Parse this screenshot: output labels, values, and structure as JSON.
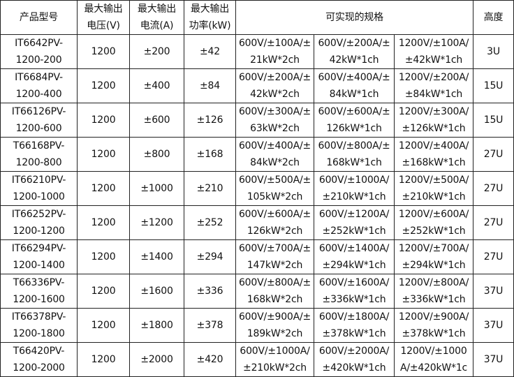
{
  "table": {
    "headers": [
      "产品型号",
      "最大输出\n电压(V)",
      "最大输出\n电流(A)",
      "最大输出\n功率(kW)",
      "可实现的规格",
      "高度"
    ],
    "rows": [
      [
        "IT6642PV-\n1200-200",
        "1200",
        "±200",
        "±42",
        "600V/±100A/±\n21kW*2ch",
        "600V/±200A/±\n42kW*1ch",
        "1200V/±100A/\n±42kW*1ch",
        "3U"
      ],
      [
        "IT6684PV-\n1200-400",
        "1200",
        "±400",
        "±84",
        "600V/±200A/±\n42kW*2ch",
        "600V/±400A/±\n84kW*1ch",
        "1200V/±200A/\n±84kW*1ch",
        "15U"
      ],
      [
        "IT66126PV-\n1200-600",
        "1200",
        "±600",
        "±126",
        "600V/±300A/±\n63kW*2ch",
        "600V/±600A/±\n126kW*1ch",
        "1200V/±300A/\n±126kW*1ch",
        "15U"
      ],
      [
        "T66168PV-\n1200-800",
        "1200",
        "±800",
        "±168",
        "600V/±400A/±\n84kW*2ch",
        "600V/±800A/±\n168kW*1ch",
        "1200V/±400A/\n±168kW*1ch",
        "27U"
      ],
      [
        "IT66210PV-\n1200-1000",
        "1200",
        "±1000",
        "±210",
        "600V/±500A/±\n105kW*2ch",
        "600V/±1000A/\n±210kW*1ch",
        "1200V/±500A/\n±210kW*1ch",
        "27U"
      ],
      [
        "IT66252PV-\n1200-1200",
        "1200",
        "±1200",
        "±252",
        "600V/±600A/±\n126kW*2ch",
        "600V/±1200A/\n±252kW*1ch",
        "1200V/±600A/\n±252kW*1ch",
        "27U"
      ],
      [
        "IT66294PV-\n1200-1400",
        "1200",
        "±1400",
        "±294",
        "600V/±700A/±\n147kW*2ch",
        "600V/±1400A/\n±294kW*1ch",
        "1200V/±700A/\n±294kW*1ch",
        "27U"
      ],
      [
        "T66336PV-\n1200-1600",
        "1200",
        "±1600",
        "±336",
        "600V/±800A/±\n168kW*2ch",
        "600V/±1600A/\n±336kW*1ch",
        "1200V/±800A/\n±336kW*1ch",
        "37U"
      ],
      [
        "IT66378PV-\n1200-1800",
        "1200",
        "±1800",
        "±378",
        "600V/±900A/±\n189kW*2ch",
        "600V/±1800A/\n±378kW*1ch",
        "1200V/±900A/\n±378kW*1ch",
        "37U"
      ],
      [
        "T66420PV-\n1200-2000",
        "1200",
        "±2000",
        "±420",
        "600V/±1000A/\n±210kW*2ch",
        "600V/±2000A/\n±420kW*1ch",
        "1200V/±1000\nA/±420kW*1c",
        "37U"
      ]
    ]
  }
}
